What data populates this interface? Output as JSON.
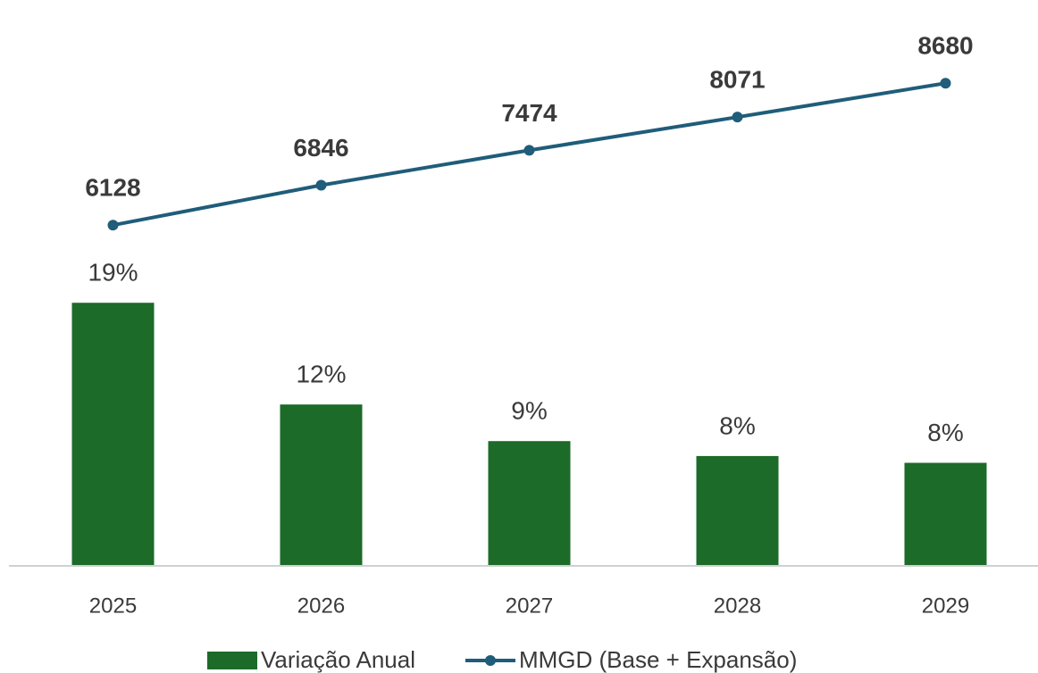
{
  "chart_data": {
    "type": "bar",
    "categories": [
      "2025",
      "2026",
      "2027",
      "2028",
      "2029"
    ],
    "series": [
      {
        "name": "Variação Anual",
        "type": "bar",
        "color": "#1c6b28",
        "values": [
          19.4,
          11.9,
          9.2,
          8.1,
          7.6
        ],
        "value_labels": [
          "19%",
          "12%",
          "9%",
          "8%",
          "8%"
        ]
      },
      {
        "name": "MMGD (Base + Expansão)",
        "type": "line",
        "axis": "y2",
        "color": "#1f5d7a",
        "values": [
          6128,
          6846,
          7474,
          8071,
          8680
        ]
      }
    ],
    "ylim": [
      0,
      41
    ],
    "y2lim": [
      0,
      10000
    ],
    "legend": "bottom"
  }
}
